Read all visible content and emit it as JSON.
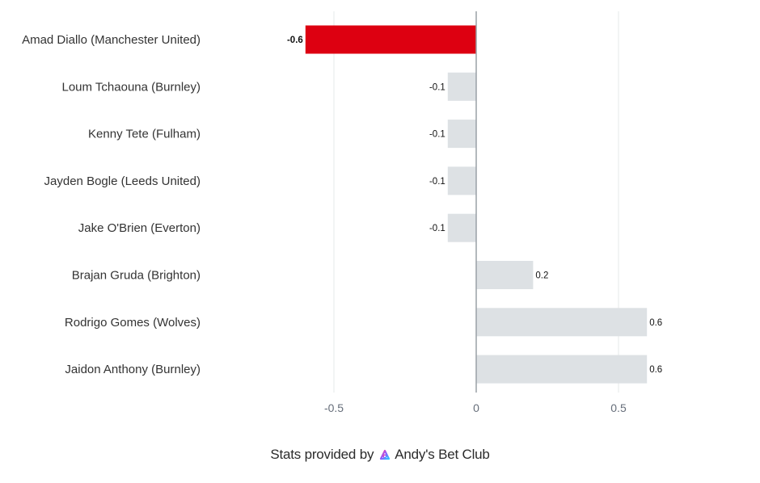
{
  "chart_data": {
    "type": "bar",
    "orientation": "horizontal",
    "categories": [
      "Amad Diallo (Manchester United)",
      "Loum Tchaouna (Burnley)",
      "Kenny Tete (Fulham)",
      "Jayden Bogle (Leeds United)",
      "Jake O'Brien (Everton)",
      "Brajan Gruda (Brighton)",
      "Rodrigo Gomes (Wolves)",
      "Jaidon Anthony (Burnley)"
    ],
    "values": [
      -0.6,
      -0.1,
      -0.1,
      -0.1,
      -0.1,
      0.2,
      0.6,
      0.6
    ],
    "highlight_index": 0,
    "xlim": [
      -0.75,
      0.75
    ],
    "xticks": [
      -0.5,
      0,
      0.5
    ],
    "grid": true,
    "colors": {
      "highlight": "#dd0011",
      "default": "#dde1e4",
      "zero_line": "#9aa0a6"
    }
  },
  "footer": {
    "prefix": "Stats provided by",
    "brand": "Andy's Bet Club",
    "logo_icon": "abc-logo-icon"
  }
}
